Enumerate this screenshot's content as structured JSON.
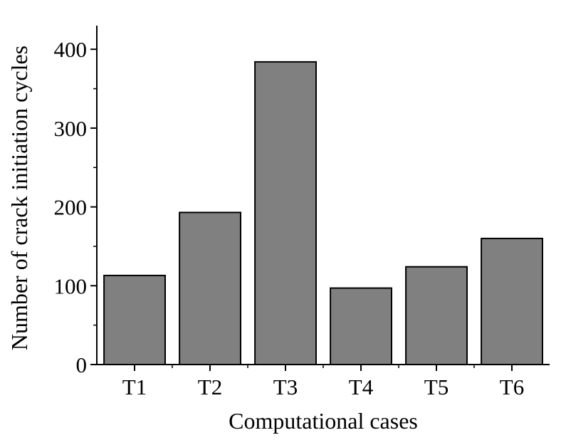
{
  "chart_data": {
    "type": "bar",
    "title": "",
    "xlabel": "Computational cases",
    "ylabel": "Number of crack initiation cycles",
    "categories": [
      "T1",
      "T2",
      "T3",
      "T4",
      "T5",
      "T6"
    ],
    "values": [
      113,
      193,
      384,
      97,
      124,
      160
    ],
    "ylim": [
      0,
      430
    ],
    "yticks": [
      0,
      100,
      200,
      300,
      400
    ],
    "ytick_labels": [
      "0",
      "100",
      "200",
      "300",
      "400"
    ],
    "bar_color": "#808080",
    "bar_edge_color": "#000000",
    "grid": false,
    "legend": "none"
  }
}
